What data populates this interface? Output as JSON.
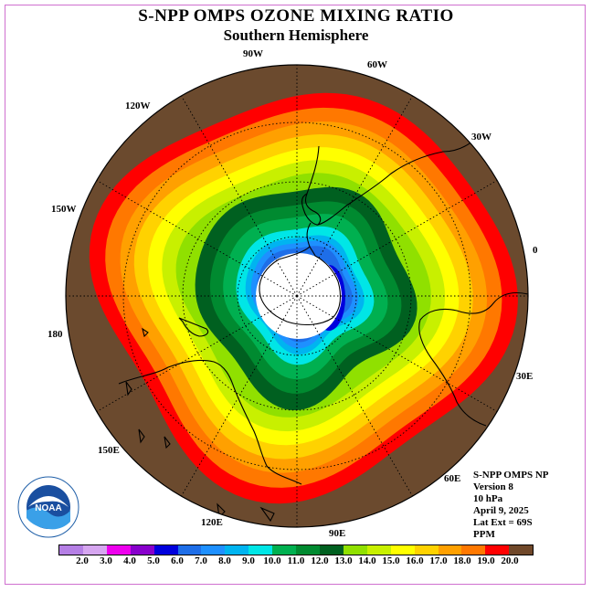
{
  "title": "S-NPP OMPS OZONE MIXING RATIO",
  "subtitle": "Southern Hemisphere",
  "longitude_labels": {
    "w90": "90W",
    "w60": "60W",
    "w120": "120W",
    "w30": "30W",
    "w150": "150W",
    "e0": "0",
    "e180": "180",
    "e30": "30E",
    "e150": "150E",
    "e60": "60E",
    "e120": "120E",
    "e90": "90E"
  },
  "info": {
    "product": "S-NPP OMPS NP",
    "version": "Version 8",
    "level": "10 hPa",
    "date": "April 9, 2025",
    "lat_ext": "Lat Ext = 69S",
    "units": "PPM"
  },
  "logo": {
    "text": "NOAA",
    "icon": "noaa-logo"
  },
  "colorbar": {
    "ticks": [
      "2.0",
      "3.0",
      "4.0",
      "5.0",
      "6.0",
      "7.0",
      "8.0",
      "9.0",
      "10.0",
      "11.0",
      "12.0",
      "13.0",
      "14.0",
      "15.0",
      "16.0",
      "17.0",
      "18.0",
      "19.0",
      "20.0"
    ],
    "colors": [
      "#b57fe5",
      "#d6a6f0",
      "#ee00ee",
      "#8800cc",
      "#0000dd",
      "#1e6ee8",
      "#1e90ff",
      "#00b4f0",
      "#00e6e6",
      "#00b050",
      "#008a30",
      "#006020",
      "#90e000",
      "#c8f000",
      "#ffff00",
      "#ffd200",
      "#ffa000",
      "#ff7800",
      "#ff0000",
      "#70482a"
    ]
  },
  "map": {
    "background": "#6b4a2e",
    "pole_hole": "#ffffff"
  }
}
